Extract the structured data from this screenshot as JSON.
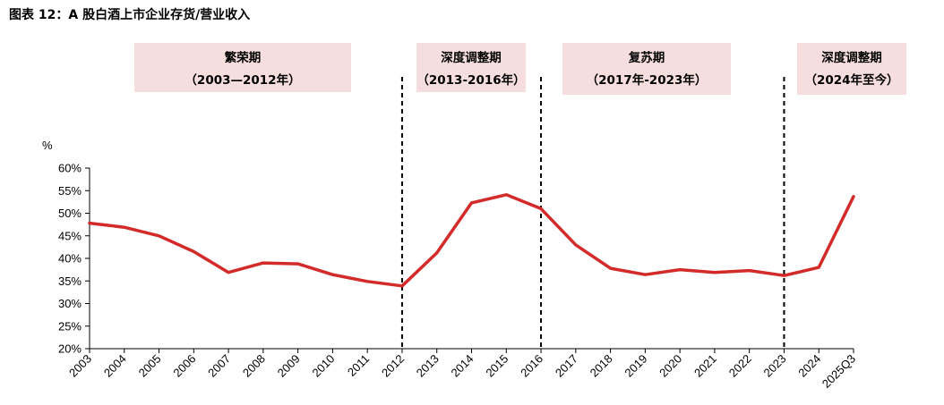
{
  "figure": {
    "title": "图表 12：A 股白酒上市企业存货/营业收入"
  },
  "chart_data": {
    "type": "line",
    "x": [
      "2003",
      "2004",
      "2005",
      "2006",
      "2007",
      "2008",
      "2009",
      "2010",
      "2011",
      "2012",
      "2013",
      "2014",
      "2015",
      "2016",
      "2017",
      "2018",
      "2019",
      "2020",
      "2021",
      "2022",
      "2023",
      "2024",
      "2025Q3"
    ],
    "series": [
      {
        "color": "#d32a2a",
        "values": [
          47.8,
          46.9,
          45.0,
          41.5,
          36.9,
          39.0,
          38.8,
          36.4,
          34.9,
          33.9,
          41.2,
          52.3,
          54.1,
          51.0,
          43.0,
          37.8,
          36.4,
          37.5,
          36.9,
          37.3,
          36.2,
          38.0,
          53.7
        ]
      }
    ],
    "ylabel": "%",
    "ylim": [
      20,
      60
    ],
    "yticks": [
      "20%",
      "25%",
      "30%",
      "35%",
      "40%",
      "45%",
      "50%",
      "55%",
      "60%"
    ],
    "yticks_values": [
      20,
      25,
      30,
      35,
      40,
      45,
      50,
      55,
      60
    ],
    "grid": false,
    "legend": "none",
    "phases": [
      {
        "name": "繁荣期",
        "range": "（2003—2012年）"
      },
      {
        "name": "深度调整期",
        "range": "（2013-2016年）"
      },
      {
        "name": "复苏期",
        "range": "（2017年-2023年）"
      },
      {
        "name": "深度调整期",
        "range": "（2024年至今）"
      }
    ],
    "phase_dividers_after": [
      "2012",
      "2016",
      "2023"
    ]
  }
}
